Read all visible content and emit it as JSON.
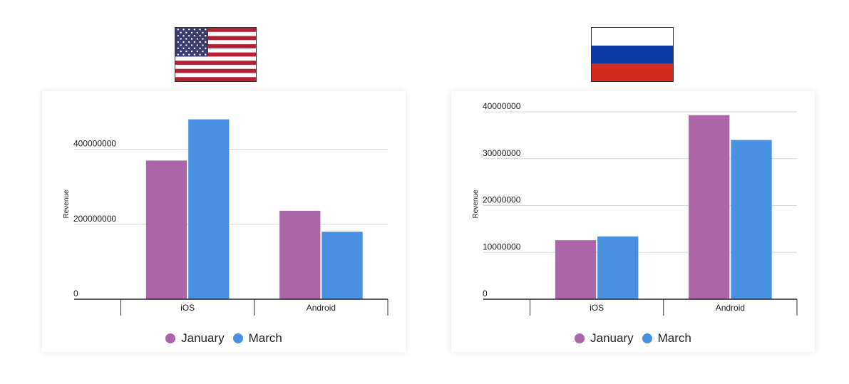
{
  "colors": {
    "january": "#AB66A7",
    "march": "#4A90E0"
  },
  "flags": [
    {
      "country": "United States",
      "icon": "us-flag-icon"
    },
    {
      "country": "Russia",
      "icon": "russia-flag-icon"
    }
  ],
  "chart_data": [
    {
      "type": "bar",
      "categories": [
        "iOS",
        "Android"
      ],
      "series": [
        {
          "name": "January",
          "values": [
            370000000,
            236000000
          ]
        },
        {
          "name": "March",
          "values": [
            480000000,
            180000000
          ]
        }
      ],
      "yticks": [
        0,
        200000000,
        400000000
      ],
      "ytick_labels": [
        "0",
        "200000000",
        "400000000"
      ],
      "ylim": [
        0,
        500000000
      ],
      "xlabel": "",
      "ylabel": "Revenue",
      "grid": true,
      "legend": "bottom"
    },
    {
      "type": "bar",
      "categories": [
        "iOS",
        "Android"
      ],
      "series": [
        {
          "name": "January",
          "values": [
            12600000,
            39300000
          ]
        },
        {
          "name": "March",
          "values": [
            13400000,
            34000000
          ]
        }
      ],
      "yticks": [
        0,
        10000000,
        20000000,
        30000000,
        40000000
      ],
      "ytick_labels": [
        "0",
        "10000000",
        "20000000",
        "30000000",
        "40000000"
      ],
      "ylim": [
        0,
        40000000
      ],
      "xlabel": "",
      "ylabel": "Revenue",
      "grid": true,
      "legend": "bottom"
    }
  ]
}
